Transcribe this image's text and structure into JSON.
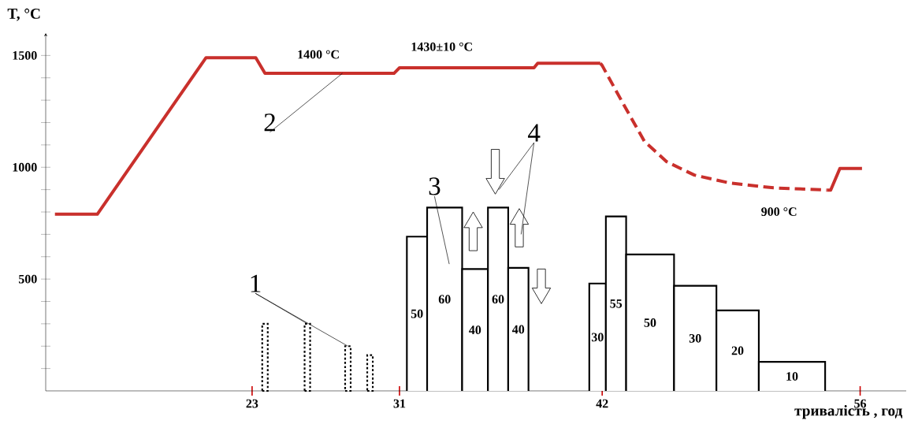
{
  "chart_data": {
    "type": "line",
    "ylabel": "T, °C",
    "xlabel": "тривалість , год",
    "xlim": [
      11.8,
      58.5
    ],
    "ylim": [
      0,
      1600
    ],
    "xticks": [
      23,
      31,
      42,
      56
    ],
    "yticks": [
      {
        "value": 100,
        "label": null
      },
      {
        "value": 200,
        "label": null
      },
      {
        "value": 300,
        "label": null
      },
      {
        "value": 400,
        "label": null
      },
      500,
      {
        "value": 600,
        "label": null
      },
      {
        "value": 700,
        "label": null
      },
      {
        "value": 800,
        "label": null
      },
      {
        "value": 900,
        "label": null
      },
      1000,
      {
        "value": 1100,
        "label": null
      },
      {
        "value": 1200,
        "label": null
      },
      {
        "value": 1300,
        "label": null
      },
      {
        "value": 1400,
        "label": null
      },
      1500
    ],
    "marker": "none",
    "series": [
      {
        "color": "#c9302c",
        "line_style": "solid",
        "x": [
          12.3,
          14.6,
          20.5,
          23.2,
          23.7,
          30.7,
          31.0,
          38.3,
          38.5,
          41.9
        ],
        "values": [
          790,
          790,
          1490,
          1490,
          1420,
          1420,
          1445,
          1445,
          1465,
          1465
        ]
      },
      {
        "color": "#c9302c",
        "line_style": "dashed",
        "x": [
          41.9,
          42.0,
          43.1,
          44.3,
          45.5,
          47.0,
          48.9,
          51.3,
          54.2
        ],
        "values": [
          1465,
          1455,
          1290,
          1115,
          1025,
          965,
          930,
          908,
          898
        ]
      },
      {
        "color": "#c9302c",
        "line_style": "solid",
        "x": [
          54.2,
          54.4,
          54.9,
          56.1
        ],
        "values": [
          898,
          898,
          995,
          995
        ]
      },
      {
        "type": "bar",
        "color": "#000000",
        "x": [
          23.7,
          26.0,
          28.2,
          29.4
        ],
        "values": [
          300,
          300,
          200,
          160
        ]
      },
      {
        "type": "histogram",
        "color": "#000000",
        "bins": [
          31.4,
          32.5,
          34.4,
          35.8,
          36.9,
          38.0,
          41.3,
          42.2,
          43.3,
          45.9,
          48.2,
          50.5,
          54.1
        ],
        "values": [
          690,
          820,
          545,
          820,
          550,
          null,
          480,
          780,
          610,
          470,
          360,
          130
        ]
      }
    ],
    "annotations": [
      {
        "text": "1400 °C",
        "x": 26.6,
        "y": 1420
      },
      {
        "text": "1430±10 °C",
        "x": 33.3,
        "y": 1445
      },
      {
        "text": "900 °C",
        "x": 51.6,
        "y": 900
      },
      {
        "text": "1",
        "x": 26.0,
        "y": 300
      },
      {
        "text": "2",
        "x": 27.9,
        "y": 1420
      },
      "3",
      "4",
      "50",
      "60",
      "40",
      "60",
      "40",
      "30",
      "55",
      "50",
      "30",
      "20",
      "10"
    ]
  }
}
